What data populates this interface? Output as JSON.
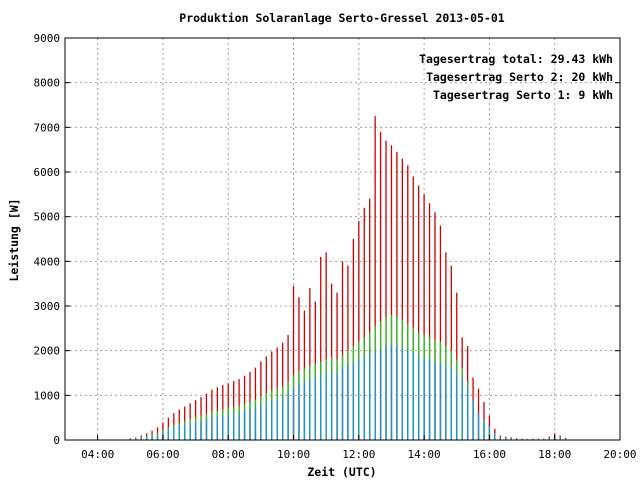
{
  "chart_data": {
    "type": "bar",
    "title": "Produktion Solaranlage Serto-Gressel 2013-05-01",
    "xlabel": "Zeit (UTC)",
    "ylabel": "Leistung [W]",
    "x_ticks": [
      "04:00",
      "06:00",
      "08:00",
      "10:00",
      "12:00",
      "14:00",
      "16:00",
      "18:00",
      "20:00"
    ],
    "y_ticks": [
      "0",
      "1000",
      "2000",
      "3000",
      "4000",
      "5000",
      "6000",
      "7000",
      "8000",
      "9000"
    ],
    "xlim": [
      "03:00",
      "20:00"
    ],
    "ylim": [
      0,
      9000
    ],
    "grid": true,
    "legend_position": "top-right",
    "stacked": true,
    "legend": [
      {
        "label": "Tagesertrag total: 29.43 kWh",
        "color": "#cc0000"
      },
      {
        "label": "Tagesertrag Serto 2: 20 kWh",
        "color": "#00bb00"
      },
      {
        "label": "Tagesertrag Serto 1: 9 kWh",
        "color": "#0077dd"
      }
    ],
    "series_colors": {
      "serto1": "#1b8fe0",
      "serto2": "#22c322",
      "total": "#cc0000"
    },
    "x": [
      "05:00",
      "05:10",
      "05:20",
      "05:30",
      "05:40",
      "05:50",
      "06:00",
      "06:10",
      "06:20",
      "06:30",
      "06:40",
      "06:50",
      "07:00",
      "07:10",
      "07:20",
      "07:30",
      "07:40",
      "07:50",
      "08:00",
      "08:10",
      "08:20",
      "08:30",
      "08:40",
      "08:50",
      "09:00",
      "09:10",
      "09:20",
      "09:30",
      "09:40",
      "09:50",
      "10:00",
      "10:10",
      "10:20",
      "10:30",
      "10:40",
      "10:50",
      "11:00",
      "11:10",
      "11:20",
      "11:30",
      "11:40",
      "11:50",
      "12:00",
      "12:10",
      "12:20",
      "12:30",
      "12:40",
      "12:50",
      "13:00",
      "13:10",
      "13:20",
      "13:30",
      "13:40",
      "13:50",
      "14:00",
      "14:10",
      "14:20",
      "14:30",
      "14:40",
      "14:50",
      "15:00",
      "15:10",
      "15:20",
      "15:30",
      "15:40",
      "15:50",
      "16:00",
      "16:10",
      "16:20",
      "16:30",
      "16:40",
      "16:50",
      "17:00",
      "17:10",
      "17:20",
      "17:30",
      "17:40",
      "17:50",
      "18:00",
      "18:10",
      "18:20"
    ],
    "serto1": [
      10,
      20,
      40,
      60,
      90,
      120,
      170,
      220,
      270,
      300,
      330,
      360,
      390,
      420,
      460,
      500,
      520,
      540,
      560,
      580,
      600,
      640,
      680,
      720,
      780,
      820,
      880,
      920,
      980,
      1050,
      1150,
      1250,
      1300,
      1350,
      1400,
      1450,
      1500,
      1550,
      1500,
      1600,
      1700,
      1750,
      1800,
      1850,
      1900,
      2000,
      2050,
      2100,
      2150,
      2100,
      2050,
      2000,
      1950,
      1900,
      1850,
      1800,
      1750,
      1700,
      1650,
      1600,
      1500,
      1400,
      1200,
      900,
      600,
      450,
      300,
      150,
      60,
      40,
      30,
      20,
      10,
      10,
      10,
      10,
      10,
      30,
      60,
      40,
      20
    ],
    "serto2": [
      30,
      40,
      60,
      90,
      120,
      160,
      220,
      280,
      330,
      380,
      420,
      460,
      500,
      540,
      580,
      630,
      660,
      690,
      710,
      740,
      760,
      800,
      850,
      900,
      980,
      1050,
      1100,
      1150,
      1200,
      1300,
      1450,
      1550,
      1600,
      1650,
      1700,
      1750,
      1800,
      1850,
      1800,
      1900,
      2000,
      2100,
      2200,
      2300,
      2400,
      2550,
      2650,
      2750,
      2800,
      2750,
      2700,
      2600,
      2500,
      2400,
      2350,
      2300,
      2250,
      2200,
      2100,
      2000,
      1800,
      1600,
      1300,
      900,
      550,
      400,
      250,
      100,
      40,
      30,
      30,
      20,
      20,
      10,
      20,
      20,
      20,
      50,
      90,
      60,
      30
    ],
    "total": [
      40,
      60,
      100,
      150,
      210,
      280,
      390,
      500,
      600,
      680,
      750,
      820,
      890,
      960,
      1040,
      1130,
      1180,
      1230,
      1270,
      1320,
      1360,
      1440,
      1530,
      1620,
      1760,
      1870,
      1980,
      2070,
      2180,
      2350,
      3450,
      3200,
      2900,
      3400,
      3100,
      4100,
      4200,
      3500,
      3300,
      4000,
      3900,
      4500,
      4900,
      5200,
      5400,
      7250,
      6900,
      6700,
      6600,
      6450,
      6300,
      6150,
      5900,
      5700,
      5500,
      5300,
      5100,
      4800,
      4200,
      3900,
      3300,
      2300,
      2100,
      1400,
      1150,
      850,
      550,
      250,
      100,
      70,
      60,
      40,
      30,
      20,
      30,
      30,
      30,
      80,
      150,
      100,
      50
    ]
  }
}
